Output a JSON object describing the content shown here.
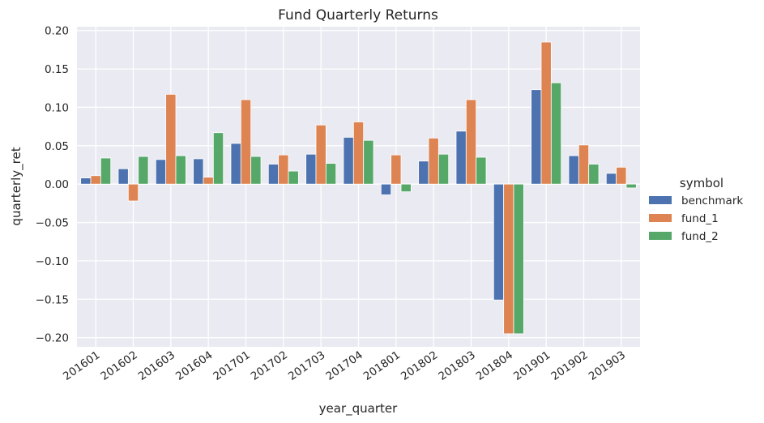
{
  "chart_data": {
    "type": "bar",
    "title": "Fund Quarterly Returns",
    "xlabel": "year_quarter",
    "ylabel": "quarterly_ret",
    "ylim": [
      -0.212,
      0.205
    ],
    "yticks": [
      "0.20",
      "0.15",
      "0.10",
      "0.05",
      "0.00",
      "−0.05",
      "−0.10",
      "−0.15",
      "−0.20"
    ],
    "ytick_values": [
      0.2,
      0.15,
      0.1,
      0.05,
      0.0,
      -0.05,
      -0.1,
      -0.15,
      -0.2
    ],
    "grid": true,
    "legend_title": "symbol",
    "legend_position": "right",
    "categories": [
      "201601",
      "201602",
      "201603",
      "201604",
      "201701",
      "201702",
      "201703",
      "201704",
      "201801",
      "201802",
      "201803",
      "201804",
      "201901",
      "201902",
      "201903"
    ],
    "series": [
      {
        "name": "benchmark",
        "color": "#4c72b0",
        "values": [
          0.008,
          0.02,
          0.032,
          0.033,
          0.053,
          0.026,
          0.039,
          0.061,
          -0.014,
          0.03,
          0.069,
          -0.151,
          0.123,
          0.037,
          0.014
        ]
      },
      {
        "name": "fund_1",
        "color": "#dd8452",
        "values": [
          0.011,
          -0.022,
          0.117,
          0.009,
          0.11,
          0.038,
          0.077,
          0.081,
          0.038,
          0.06,
          0.11,
          -0.195,
          0.185,
          0.051,
          0.022
        ]
      },
      {
        "name": "fund_2",
        "color": "#55a868",
        "values": [
          0.034,
          0.036,
          0.037,
          0.067,
          0.036,
          0.017,
          0.027,
          0.057,
          -0.01,
          0.039,
          0.035,
          -0.195,
          0.132,
          0.026,
          -0.005
        ]
      }
    ]
  }
}
